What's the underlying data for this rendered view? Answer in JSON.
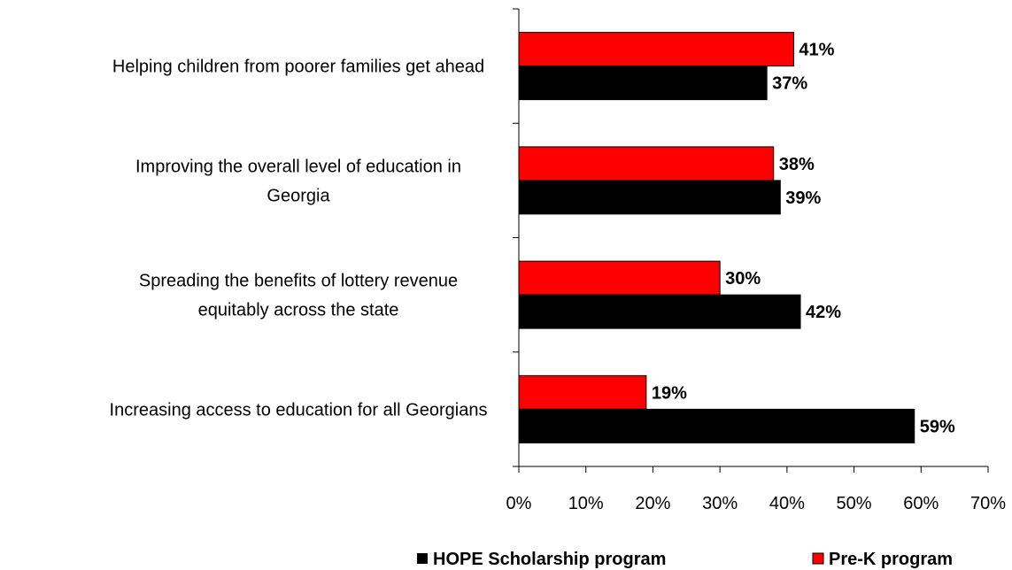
{
  "chart_data": {
    "type": "bar",
    "orientation": "horizontal",
    "categories": [
      [
        "Helping children from poorer families get ahead"
      ],
      [
        "Improving the overall level of education in",
        "Georgia"
      ],
      [
        "Spreading the benefits of lottery revenue",
        "equitably across the state"
      ],
      [
        "Increasing access to education for all Georgians"
      ]
    ],
    "series": [
      {
        "name": "Pre-K program",
        "color": "#ff0000",
        "values": [
          41,
          38,
          30,
          19
        ],
        "labels": [
          "41%",
          "38%",
          "30%",
          "19%"
        ]
      },
      {
        "name": "HOPE Scholarship program",
        "color": "#000000",
        "values": [
          37,
          39,
          42,
          59
        ],
        "labels": [
          "37%",
          "39%",
          "42%",
          "59%"
        ]
      }
    ],
    "xlim": [
      0,
      70
    ],
    "x_ticks": [
      0,
      10,
      20,
      30,
      40,
      50,
      60,
      70
    ],
    "x_tick_labels": [
      "0%",
      "10%",
      "20%",
      "30%",
      "40%",
      "50%",
      "60%",
      "70%"
    ],
    "grid": false,
    "legend": {
      "position": "bottom-right",
      "order": [
        "HOPE Scholarship program",
        "Pre-K program"
      ]
    },
    "title": "",
    "xlabel": "",
    "ylabel": ""
  }
}
